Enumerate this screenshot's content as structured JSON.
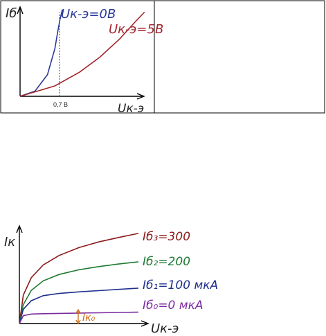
{
  "chart_data": [
    {
      "type": "line",
      "title": "",
      "xlabel": "Uк-э",
      "ylabel": "Iб",
      "x_ticks": [
        "0,7 В"
      ],
      "series": [
        {
          "name": "Uк-э=0В",
          "color": "#2b3a9b",
          "x": [
            0,
            0.3,
            0.55,
            0.7,
            0.75,
            0.8,
            0.85
          ],
          "y": [
            0,
            0.06,
            0.25,
            0.55,
            0.72,
            0.88,
            1.0
          ]
        },
        {
          "name": "Uк-э=5В",
          "color": "#a3262c",
          "x": [
            0,
            0.7,
            1.2,
            1.6,
            2.0,
            2.3,
            2.5
          ],
          "y": [
            0,
            0.12,
            0.28,
            0.45,
            0.66,
            0.85,
            0.97
          ]
        }
      ]
    },
    {
      "type": "line",
      "title": "",
      "xlabel": "Uк-э",
      "ylabel": "Iк",
      "annotations": [
        "Iк₀"
      ],
      "series": [
        {
          "name": "Iб₃=300",
          "color": "#8b1a1a",
          "x": [
            0,
            0.1,
            0.3,
            0.6,
            1.0,
            1.5,
            2.0,
            2.5,
            3.0
          ],
          "y": [
            0,
            0.9,
            1.45,
            1.85,
            2.15,
            2.4,
            2.58,
            2.72,
            2.85
          ]
        },
        {
          "name": "Iб₂=200",
          "color": "#1e7a32",
          "x": [
            0,
            0.1,
            0.3,
            0.6,
            1.0,
            1.5,
            2.0,
            2.5,
            3.0
          ],
          "y": [
            0,
            0.6,
            1.05,
            1.35,
            1.55,
            1.7,
            1.8,
            1.88,
            1.95
          ]
        },
        {
          "name": "Iб₁=100 мкА",
          "color": "#1f2f8c",
          "x": [
            0,
            0.1,
            0.3,
            0.6,
            1.0,
            1.5,
            2.0,
            2.5,
            3.0
          ],
          "y": [
            0,
            0.45,
            0.72,
            0.88,
            0.95,
            1.0,
            1.04,
            1.08,
            1.12
          ]
        },
        {
          "name": "Iб₀=0 мкА",
          "color": "#7a2aa0",
          "x": [
            0,
            0.1,
            0.3,
            0.6,
            1.0,
            1.5,
            2.0,
            2.5,
            3.0
          ],
          "y": [
            0,
            0.25,
            0.3,
            0.31,
            0.32,
            0.33,
            0.34,
            0.35,
            0.36
          ]
        }
      ]
    }
  ]
}
